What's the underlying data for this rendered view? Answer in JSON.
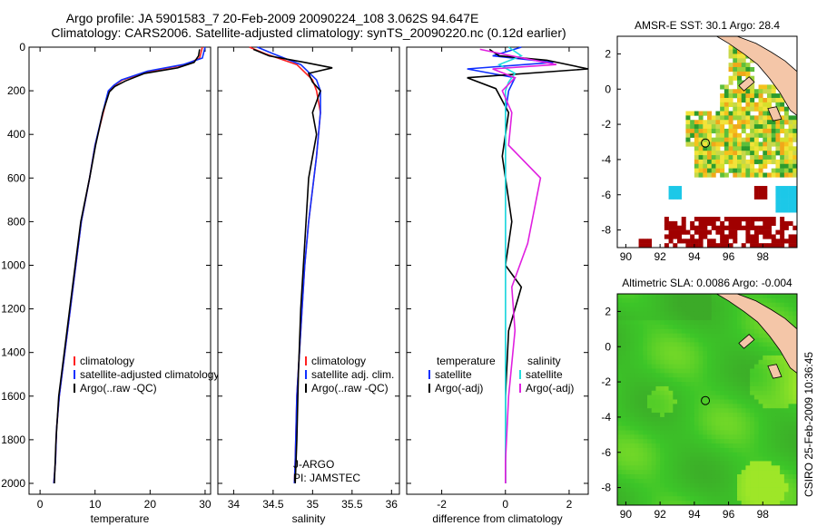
{
  "header": {
    "title_line1": "Argo profile: JA 5901583_7 20-Feb-2009 20090224_108 3.062S 94.647E",
    "title_line2": "Climatology: CARS2006. Satellite-adjusted climatology: synTS_20090220.nc (0.12d earlier)"
  },
  "stamp": "CSIRO 25-Feb-2009 10:36:45",
  "colors": {
    "climatology": "#ff2020",
    "satellite": "#1030ff",
    "argo": "#000000",
    "cyan": "#22dddd",
    "magenta": "#e020e0",
    "land": "#f4c6a8"
  },
  "chart_data": [
    {
      "type": "line",
      "title": "",
      "xlabel": "temperature",
      "ylabel": "",
      "xlim": [
        -2,
        31
      ],
      "ylim": [
        2050,
        0
      ],
      "xticks": [
        0,
        10,
        20,
        30
      ],
      "yticks": [
        0,
        200,
        400,
        600,
        800,
        1000,
        1200,
        1400,
        1600,
        1800,
        2000
      ],
      "legend": {
        "position": "middle-right",
        "entries": [
          "climatology",
          "satellite-adjusted climatology",
          "Argo(..raw -QC)"
        ]
      },
      "series": [
        {
          "name": "climatology",
          "color": "red",
          "x": [
            29.5,
            29.0,
            26.5,
            20.0,
            15.0,
            13.5,
            12.5,
            11.5,
            10.0,
            9.0,
            7.5,
            6.5,
            5.5,
            4.5,
            3.5,
            3.0,
            2.8,
            2.5
          ],
          "y": [
            0,
            50,
            80,
            110,
            150,
            175,
            200,
            300,
            450,
            600,
            800,
            1000,
            1200,
            1400,
            1600,
            1750,
            1900,
            2000
          ]
        },
        {
          "name": "satellite-adjusted climatology",
          "color": "blue",
          "x": [
            30.0,
            29.5,
            26.0,
            19.5,
            14.8,
            13.4,
            12.4,
            11.4,
            10.0,
            9.0,
            7.5,
            6.5,
            5.5,
            4.5,
            3.5,
            3.0,
            2.8,
            2.5
          ],
          "y": [
            0,
            50,
            80,
            110,
            150,
            175,
            200,
            300,
            450,
            600,
            800,
            1000,
            1200,
            1400,
            1600,
            1750,
            1900,
            2000
          ]
        },
        {
          "name": "Argo(..raw -QC)",
          "color": "black",
          "x": [
            29.0,
            28.8,
            28.0,
            25.0,
            19.0,
            15.5,
            13.6,
            12.6,
            11.4,
            10.1,
            9.0,
            7.4,
            6.4,
            5.4,
            4.4,
            3.4,
            2.9,
            2.6
          ],
          "y": [
            10,
            40,
            70,
            95,
            120,
            155,
            180,
            205,
            300,
            450,
            600,
            800,
            1000,
            1200,
            1400,
            1600,
            1800,
            2000
          ]
        }
      ]
    },
    {
      "type": "line",
      "title": "",
      "xlabel": "salinity",
      "ylabel": "",
      "xlim": [
        33.8,
        36.1
      ],
      "ylim": [
        2050,
        0
      ],
      "xticks": [
        34,
        34.5,
        35,
        35.5,
        36
      ],
      "yticks": [],
      "legend": {
        "position": "middle-right",
        "entries": [
          "climatology",
          "satellite adj. clim.",
          "Argo(..raw -QC)"
        ]
      },
      "annotations": [
        "J-ARGO",
        "PI: JAMSTEC"
      ],
      "series": [
        {
          "name": "climatology",
          "color": "red",
          "x": [
            34.2,
            34.4,
            34.8,
            35.0,
            35.05,
            35.1,
            35.05,
            34.95,
            34.9,
            34.85,
            34.8,
            34.78,
            34.77
          ],
          "y": [
            0,
            30,
            80,
            150,
            200,
            300,
            500,
            800,
            1000,
            1300,
            1600,
            1900,
            2000
          ]
        },
        {
          "name": "satellite adj. clim.",
          "color": "blue",
          "x": [
            34.3,
            34.5,
            34.85,
            35.05,
            35.1,
            35.1,
            35.05,
            34.95,
            34.9,
            34.85,
            34.8,
            34.78,
            34.77
          ],
          "y": [
            0,
            30,
            80,
            150,
            200,
            300,
            500,
            800,
            1000,
            1300,
            1600,
            1900,
            2000
          ]
        },
        {
          "name": "Argo(..raw -QC)",
          "color": "black",
          "x": [
            34.25,
            34.45,
            34.9,
            35.25,
            34.95,
            35.0,
            35.1,
            35.0,
            35.05,
            34.95,
            34.9,
            34.85,
            34.82,
            34.8,
            34.78
          ],
          "y": [
            10,
            40,
            70,
            95,
            120,
            160,
            200,
            300,
            400,
            600,
            900,
            1200,
            1500,
            1800,
            2000
          ]
        }
      ]
    },
    {
      "type": "line",
      "title": "",
      "xlabel": "difference from climatology",
      "ylabel": "",
      "xlim": [
        -3.1,
        2.6
      ],
      "ylim": [
        2050,
        0
      ],
      "xticks": [
        -2,
        0,
        2
      ],
      "yticks": [],
      "legend": {
        "position": "middle",
        "entries": [
          "temperature",
          "satellite",
          "Argo(-adj)",
          "salinity",
          "satellite",
          "Argo(-adj)"
        ]
      },
      "series": [
        {
          "name": "temperature satellite",
          "color": "blue",
          "x": [
            0.5,
            -0.4,
            1.5,
            -1.2,
            0.3,
            0.1,
            0.0,
            0.0,
            0.0,
            0.0,
            0.0,
            0.0,
            0.0,
            0.0
          ],
          "y": [
            0,
            40,
            70,
            100,
            140,
            200,
            300,
            500,
            800,
            1100,
            1400,
            1700,
            1900,
            2000
          ]
        },
        {
          "name": "temperature Argo(-adj)",
          "color": "black",
          "x": [
            -0.5,
            -0.2,
            1.3,
            2.6,
            -1.2,
            -0.3,
            0.1,
            -0.1,
            0.2,
            0.0,
            0.5,
            0.1,
            0.0,
            0.0,
            0.0
          ],
          "y": [
            10,
            40,
            60,
            100,
            140,
            190,
            300,
            500,
            800,
            1000,
            1100,
            1300,
            1600,
            1900,
            2000
          ]
        },
        {
          "name": "salinity satellite",
          "color": "cyan",
          "x": [
            0.1,
            0.5,
            -0.2,
            0.3,
            0.1,
            0.0,
            0.0,
            0.0,
            0.0,
            0.0,
            0.0,
            0.0,
            0.0
          ],
          "y": [
            0,
            40,
            80,
            120,
            160,
            200,
            300,
            500,
            800,
            1100,
            1400,
            1700,
            2000
          ]
        },
        {
          "name": "salinity Argo(-adj)",
          "color": "magenta",
          "x": [
            -0.8,
            0.2,
            1.6,
            -0.4,
            0.3,
            -0.1,
            0.2,
            0.1,
            1.1,
            0.7,
            0.2,
            0.3,
            0.1,
            0.0,
            0.0
          ],
          "y": [
            10,
            40,
            80,
            100,
            140,
            200,
            300,
            450,
            600,
            900,
            1100,
            1300,
            1600,
            1900,
            2000
          ]
        }
      ]
    },
    {
      "type": "heatmap",
      "title": "AMSR-E SST: 30.1 Argo: 28.4",
      "xlabel": "",
      "ylabel": "",
      "xlim": [
        89.5,
        100
      ],
      "ylim": [
        -9,
        3
      ],
      "xticks": [
        90,
        92,
        94,
        96,
        98
      ],
      "yticks": [
        2,
        0,
        -2,
        -4,
        -6,
        -8
      ],
      "marker": {
        "lon": 94.647,
        "lat": -3.062
      }
    },
    {
      "type": "heatmap",
      "title": "Altimetric SLA: 0.0086 Argo: -0.004",
      "xlabel": "",
      "ylabel": "",
      "xlim": [
        89.5,
        100
      ],
      "ylim": [
        -9,
        3
      ],
      "xticks": [
        90,
        92,
        94,
        96,
        98
      ],
      "yticks": [
        2,
        0,
        -2,
        -4,
        -6,
        -8
      ],
      "marker": {
        "lon": 94.647,
        "lat": -3.062
      }
    }
  ]
}
